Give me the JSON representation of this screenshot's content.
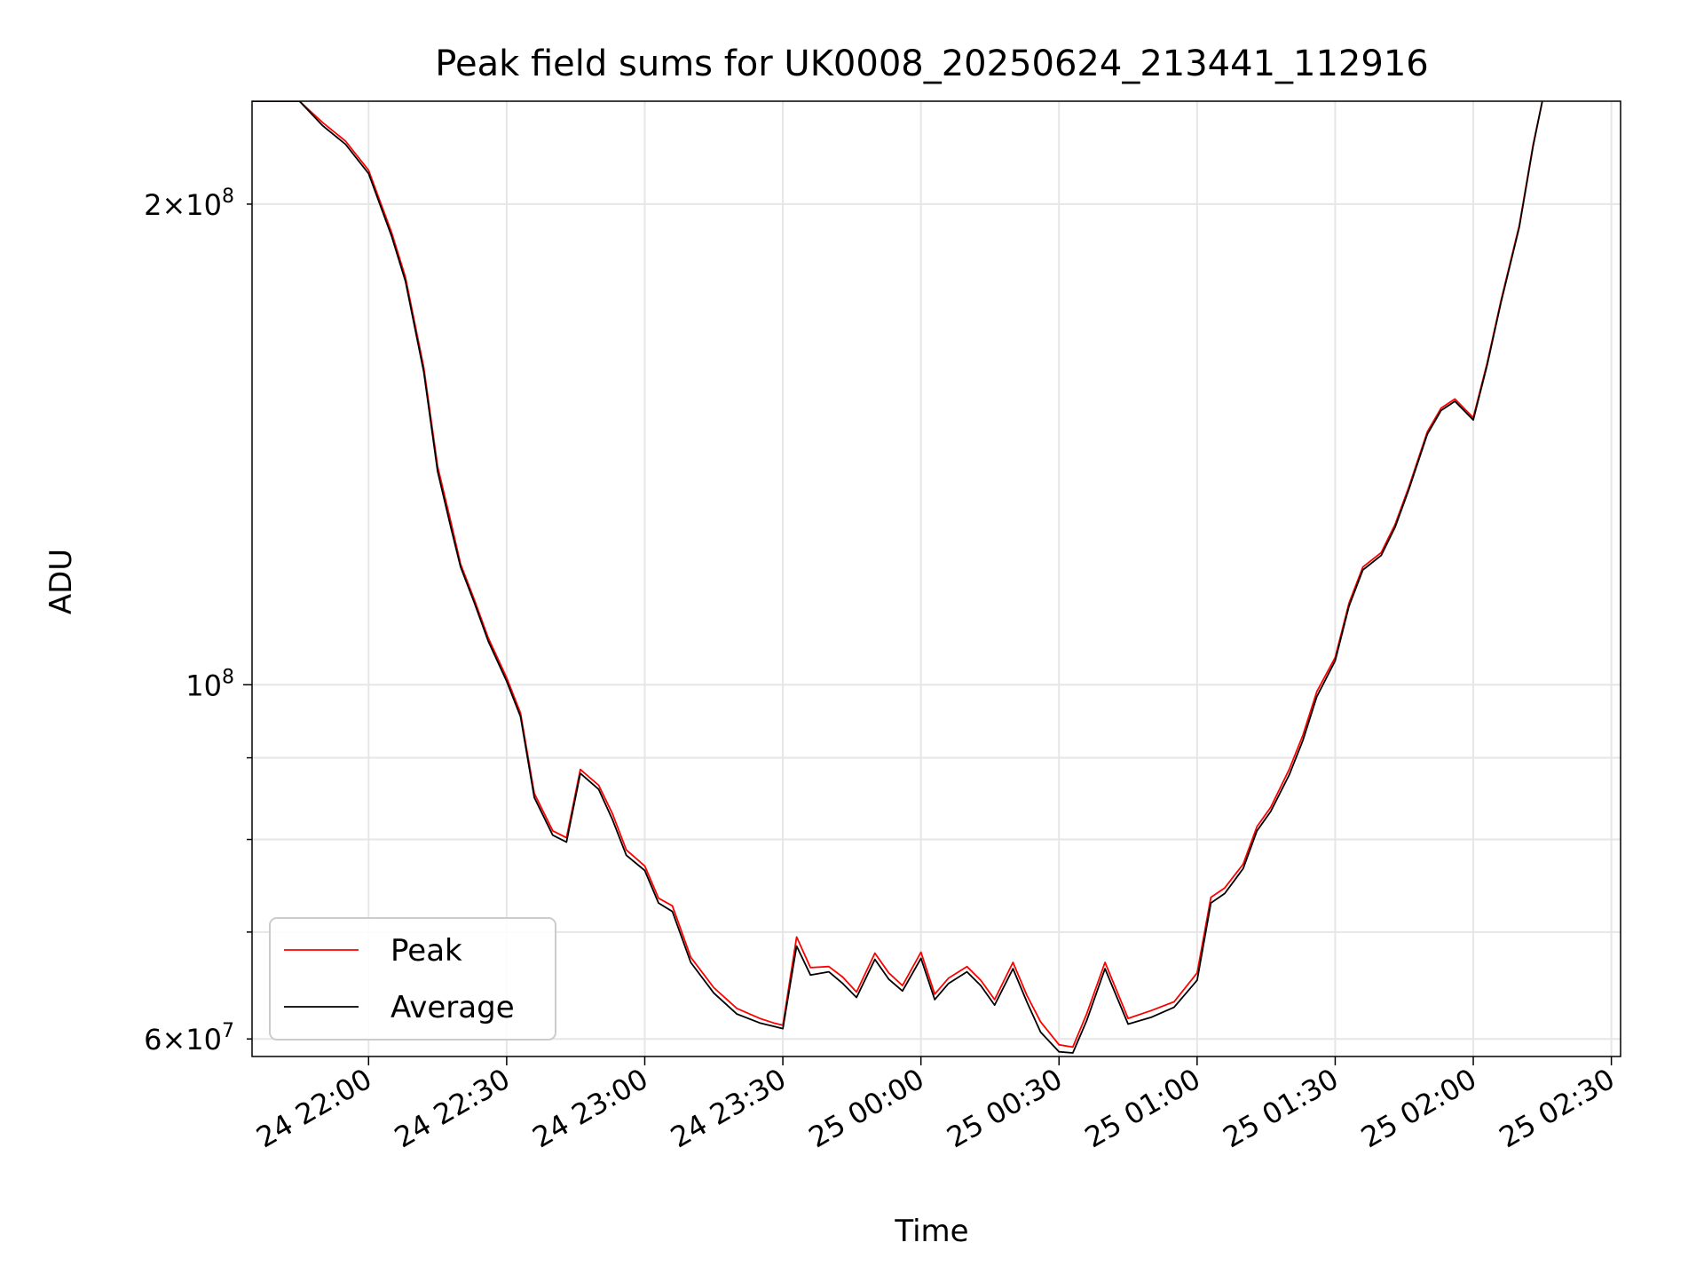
{
  "chart_data": {
    "type": "line",
    "title": "Peak field sums for UK0008_20250624_213441_112916",
    "xlabel": "Time",
    "ylabel": "ADU",
    "yscale": "log",
    "ylim": [
      58500000,
      232000000
    ],
    "xlim": [
      "2025-06-24 21:34:41",
      "2025-06-25 02:32:00"
    ],
    "x_ticks": [
      "2025-06-24 22:00",
      "2025-06-24 22:30",
      "2025-06-24 23:00",
      "2025-06-24 23:30",
      "2025-06-25 00:00",
      "2025-06-25 00:30",
      "2025-06-25 01:00",
      "2025-06-25 01:30",
      "2025-06-25 02:00",
      "2025-06-25 02:30"
    ],
    "x_tick_labels": [
      "24 22:00",
      "24 22:30",
      "24 23:00",
      "24 23:30",
      "25 00:00",
      "25 00:30",
      "25 01:00",
      "25 01:30",
      "25 02:00",
      "25 02:30"
    ],
    "y_major_ticks": [
      100000000
    ],
    "y_major_tick_labels": [
      "10^8"
    ],
    "y_minor_ticks": [
      60000000,
      70000000,
      80000000,
      90000000,
      200000000
    ],
    "y_minor_tick_labels": [
      {
        "mant": "6",
        "exp": "7",
        "value": 60000000
      },
      {
        "mant": "2",
        "exp": "8",
        "value": 200000000
      }
    ],
    "grid": true,
    "legend_position": "lower-left",
    "series": [
      {
        "name": "Peak",
        "color": "#ff0000",
        "x": [
          "2025-06-24 21:34:41",
          "2025-06-24 21:45",
          "2025-06-24 21:50",
          "2025-06-24 21:55",
          "2025-06-24 22:00",
          "2025-06-24 22:05",
          "2025-06-24 22:08",
          "2025-06-24 22:12",
          "2025-06-24 22:15",
          "2025-06-24 22:18",
          "2025-06-24 22:20",
          "2025-06-24 22:23",
          "2025-06-24 22:26",
          "2025-06-24 22:30",
          "2025-06-24 22:33",
          "2025-06-24 22:36",
          "2025-06-24 22:40",
          "2025-06-24 22:43",
          "2025-06-24 22:46",
          "2025-06-24 22:50",
          "2025-06-24 22:53",
          "2025-06-24 22:56",
          "2025-06-24 23:00",
          "2025-06-24 23:03",
          "2025-06-24 23:06",
          "2025-06-24 23:10",
          "2025-06-24 23:15",
          "2025-06-24 23:20",
          "2025-06-24 23:25",
          "2025-06-24 23:28",
          "2025-06-24 23:30",
          "2025-06-24 23:33",
          "2025-06-24 23:36",
          "2025-06-24 23:40",
          "2025-06-24 23:43",
          "2025-06-24 23:46",
          "2025-06-24 23:50",
          "2025-06-24 23:53",
          "2025-06-24 23:56",
          "2025-06-25 00:00",
          "2025-06-25 00:03",
          "2025-06-25 00:06",
          "2025-06-25 00:10",
          "2025-06-25 00:13",
          "2025-06-25 00:16",
          "2025-06-25 00:20",
          "2025-06-25 00:23",
          "2025-06-25 00:26",
          "2025-06-25 00:30",
          "2025-06-25 00:33",
          "2025-06-25 00:36",
          "2025-06-25 00:40",
          "2025-06-25 00:45",
          "2025-06-25 00:50",
          "2025-06-25 00:55",
          "2025-06-25 01:00",
          "2025-06-25 01:03",
          "2025-06-25 01:06",
          "2025-06-25 01:10",
          "2025-06-25 01:13",
          "2025-06-25 01:16",
          "2025-06-25 01:20",
          "2025-06-25 01:23",
          "2025-06-25 01:26",
          "2025-06-25 01:30",
          "2025-06-25 01:33",
          "2025-06-25 01:36",
          "2025-06-25 01:40",
          "2025-06-25 01:43",
          "2025-06-25 01:46",
          "2025-06-25 01:50",
          "2025-06-25 01:53",
          "2025-06-25 01:56",
          "2025-06-25 02:00",
          "2025-06-25 02:03",
          "2025-06-25 02:06",
          "2025-06-25 02:10",
          "2025-06-25 02:13",
          "2025-06-25 02:15"
        ],
        "values": [
          232000000,
          232000000,
          225000000,
          219000000,
          210000000,
          192000000,
          180000000,
          158000000,
          137000000,
          126000000,
          119000000,
          113000000,
          107000000,
          101000000,
          96000000,
          85500000,
          81000000,
          80200000,
          88500000,
          86500000,
          83000000,
          78800000,
          77000000,
          73500000,
          72700000,
          67500000,
          64600000,
          62700000,
          61800000,
          61400000,
          61200000,
          69500000,
          66500000,
          66600000,
          65600000,
          64200000,
          67900000,
          66000000,
          64800000,
          68000000,
          64000000,
          65500000,
          66600000,
          65300000,
          63500000,
          67000000,
          63900000,
          61500000,
          59500000,
          59300000,
          62200000,
          67000000,
          61800000,
          62500000,
          63300000,
          66000000,
          73600000,
          74600000,
          77200000,
          81500000,
          83800000,
          88500000,
          93000000,
          99000000,
          104000000,
          112500000,
          118500000,
          121000000,
          126000000,
          133000000,
          144000000,
          149000000,
          151000000,
          147000000,
          159000000,
          174000000,
          194000000,
          218000000,
          232000000
        ]
      },
      {
        "name": "Average",
        "color": "#000000",
        "x": [
          "2025-06-24 21:34:41",
          "2025-06-24 21:45",
          "2025-06-24 21:50",
          "2025-06-24 21:55",
          "2025-06-24 22:00",
          "2025-06-24 22:05",
          "2025-06-24 22:08",
          "2025-06-24 22:12",
          "2025-06-24 22:15",
          "2025-06-24 22:18",
          "2025-06-24 22:20",
          "2025-06-24 22:23",
          "2025-06-24 22:26",
          "2025-06-24 22:30",
          "2025-06-24 22:33",
          "2025-06-24 22:36",
          "2025-06-24 22:40",
          "2025-06-24 22:43",
          "2025-06-24 22:46",
          "2025-06-24 22:50",
          "2025-06-24 22:53",
          "2025-06-24 22:56",
          "2025-06-24 23:00",
          "2025-06-24 23:03",
          "2025-06-24 23:06",
          "2025-06-24 23:10",
          "2025-06-24 23:15",
          "2025-06-24 23:20",
          "2025-06-24 23:25",
          "2025-06-24 23:28",
          "2025-06-24 23:30",
          "2025-06-24 23:33",
          "2025-06-24 23:36",
          "2025-06-24 23:40",
          "2025-06-24 23:43",
          "2025-06-24 23:46",
          "2025-06-24 23:50",
          "2025-06-24 23:53",
          "2025-06-24 23:56",
          "2025-06-25 00:00",
          "2025-06-25 00:03",
          "2025-06-25 00:06",
          "2025-06-25 00:10",
          "2025-06-25 00:13",
          "2025-06-25 00:16",
          "2025-06-25 00:20",
          "2025-06-25 00:23",
          "2025-06-25 00:26",
          "2025-06-25 00:30",
          "2025-06-25 00:33",
          "2025-06-25 00:36",
          "2025-06-25 00:40",
          "2025-06-25 00:45",
          "2025-06-25 00:50",
          "2025-06-25 00:55",
          "2025-06-25 01:00",
          "2025-06-25 01:03",
          "2025-06-25 01:06",
          "2025-06-25 01:10",
          "2025-06-25 01:13",
          "2025-06-25 01:16",
          "2025-06-25 01:20",
          "2025-06-25 01:23",
          "2025-06-25 01:26",
          "2025-06-25 01:30",
          "2025-06-25 01:33",
          "2025-06-25 01:36",
          "2025-06-25 01:40",
          "2025-06-25 01:43",
          "2025-06-25 01:46",
          "2025-06-25 01:50",
          "2025-06-25 01:53",
          "2025-06-25 01:56",
          "2025-06-25 02:00",
          "2025-06-25 02:03",
          "2025-06-25 02:06",
          "2025-06-25 02:10",
          "2025-06-25 02:13",
          "2025-06-25 02:15"
        ],
        "values": [
          232000000,
          232000000,
          224000000,
          218000000,
          209000000,
          191000000,
          179000000,
          157000000,
          136000000,
          125000000,
          118500000,
          112500000,
          106500000,
          100500000,
          95500000,
          85000000,
          80500000,
          79700000,
          88000000,
          86000000,
          82300000,
          78200000,
          76500000,
          73000000,
          72100000,
          67000000,
          64100000,
          62200000,
          61400000,
          61100000,
          60900000,
          68600000,
          65800000,
          66100000,
          65000000,
          63700000,
          67300000,
          65400000,
          64300000,
          67400000,
          63500000,
          65000000,
          66100000,
          64800000,
          63000000,
          66400000,
          63300000,
          60600000,
          58900000,
          58800000,
          61600000,
          66400000,
          61300000,
          61900000,
          62800000,
          65300000,
          73000000,
          74000000,
          76700000,
          81000000,
          83300000,
          87800000,
          92300000,
          98300000,
          103500000,
          112000000,
          118000000,
          120500000,
          125500000,
          132500000,
          143500000,
          148500000,
          150500000,
          146500000,
          158500000,
          173500000,
          193500000,
          217500000,
          232000000
        ]
      }
    ]
  }
}
